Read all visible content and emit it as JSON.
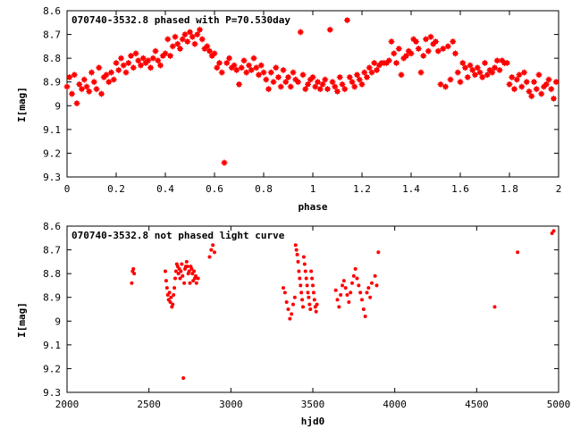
{
  "chart_data": [
    {
      "type": "scatter",
      "title": "070740-3532.8 phased with P=70.530day",
      "xlabel": "phase",
      "ylabel": "I[mag]",
      "xlim": [
        0,
        2
      ],
      "ylim": [
        9.3,
        8.6
      ],
      "y_inverted": true,
      "xticks": [
        "0",
        "0.2",
        "0.4",
        "0.6",
        "0.8",
        "1",
        "1.2",
        "1.4",
        "1.6",
        "1.8",
        "2"
      ],
      "yticks": [
        "8.6",
        "8.7",
        "8.8",
        "8.9",
        "9",
        "9.1",
        "9.2",
        "9.3"
      ],
      "marker": "star",
      "color": "#ff0000",
      "series": [
        {
          "x": [
            0.0,
            0.01,
            0.02,
            0.03,
            0.04,
            0.05,
            0.06,
            0.07,
            0.08,
            0.09,
            0.1,
            0.11,
            0.12,
            0.13,
            0.14,
            0.15,
            0.16,
            0.17,
            0.18,
            0.19,
            0.2,
            0.21,
            0.22,
            0.23,
            0.24,
            0.25,
            0.26,
            0.27,
            0.28,
            0.29,
            0.3,
            0.31,
            0.32,
            0.33,
            0.34,
            0.35,
            0.36,
            0.37,
            0.38,
            0.39,
            0.4,
            0.41,
            0.42,
            0.43,
            0.44,
            0.45,
            0.46,
            0.47,
            0.48,
            0.49,
            0.5,
            0.51,
            0.52,
            0.53,
            0.54,
            0.55,
            0.56,
            0.57,
            0.58,
            0.59,
            0.6,
            0.61,
            0.62,
            0.63,
            0.64,
            0.65,
            0.66,
            0.67,
            0.68,
            0.69,
            0.7,
            0.71,
            0.72,
            0.73,
            0.74,
            0.75,
            0.76,
            0.77,
            0.78,
            0.79,
            0.8,
            0.81,
            0.82,
            0.83,
            0.84,
            0.85,
            0.86,
            0.87,
            0.88,
            0.89,
            0.9,
            0.91,
            0.92,
            0.93,
            0.94,
            0.95,
            0.96,
            0.97,
            0.98,
            0.99,
            1.0,
            1.01,
            1.02,
            1.03,
            1.04,
            1.05,
            1.06,
            1.07,
            1.08,
            1.09,
            1.1,
            1.11,
            1.12,
            1.13,
            1.14,
            1.15,
            1.16,
            1.17,
            1.18,
            1.19,
            1.2,
            1.21,
            1.22,
            1.23,
            1.24,
            1.25,
            1.26,
            1.27,
            1.28,
            1.29,
            1.3,
            1.31,
            1.32,
            1.33,
            1.34,
            1.35,
            1.36,
            1.37,
            1.38,
            1.39,
            1.4,
            1.41,
            1.42,
            1.43,
            1.44,
            1.45,
            1.46,
            1.47,
            1.48,
            1.49,
            1.5,
            1.51,
            1.52,
            1.53,
            1.54,
            1.55,
            1.56,
            1.57,
            1.58,
            1.59,
            1.6,
            1.61,
            1.62,
            1.63,
            1.64,
            1.65,
            1.66,
            1.67,
            1.68,
            1.69,
            1.7,
            1.71,
            1.72,
            1.73,
            1.74,
            1.75,
            1.76,
            1.77,
            1.78,
            1.79,
            1.8,
            1.81,
            1.82,
            1.83,
            1.84,
            1.85,
            1.86,
            1.87,
            1.88,
            1.89,
            1.9,
            1.91,
            1.92,
            1.93,
            1.94,
            1.95,
            1.96,
            1.97,
            1.98,
            1.99
          ],
          "y": [
            8.92,
            8.88,
            8.95,
            8.87,
            8.99,
            8.91,
            8.93,
            8.89,
            8.92,
            8.94,
            8.86,
            8.9,
            8.93,
            8.84,
            8.95,
            8.88,
            8.87,
            8.9,
            8.86,
            8.89,
            8.82,
            8.85,
            8.8,
            8.83,
            8.86,
            8.82,
            8.79,
            8.84,
            8.78,
            8.81,
            8.83,
            8.8,
            8.82,
            8.81,
            8.84,
            8.8,
            8.77,
            8.81,
            8.83,
            8.79,
            8.78,
            8.72,
            8.79,
            8.75,
            8.71,
            8.74,
            8.76,
            8.72,
            8.7,
            8.73,
            8.69,
            8.71,
            8.74,
            8.7,
            8.68,
            8.72,
            8.76,
            8.75,
            8.77,
            8.79,
            8.78,
            8.84,
            8.82,
            8.86,
            9.24,
            8.82,
            8.8,
            8.84,
            8.83,
            8.85,
            8.91,
            8.84,
            8.81,
            8.86,
            8.83,
            8.85,
            8.8,
            8.84,
            8.87,
            8.83,
            8.86,
            8.89,
            8.93,
            8.86,
            8.9,
            8.84,
            8.88,
            8.92,
            8.85,
            8.9,
            8.88,
            8.92,
            8.86,
            8.89,
            8.9,
            8.69,
            8.87,
            8.93,
            8.91,
            8.89,
            8.88,
            8.92,
            8.9,
            8.93,
            8.91,
            8.89,
            8.93,
            8.68,
            8.9,
            8.92,
            8.94,
            8.88,
            8.91,
            8.93,
            8.64,
            8.88,
            8.9,
            8.92,
            8.87,
            8.89,
            8.91,
            8.86,
            8.88,
            8.84,
            8.86,
            8.82,
            8.85,
            8.83,
            8.82,
            8.82,
            8.82,
            8.81,
            8.73,
            8.78,
            8.82,
            8.76,
            8.87,
            8.8,
            8.79,
            8.77,
            8.78,
            8.72,
            8.73,
            8.76,
            8.86,
            8.79,
            8.72,
            8.77,
            8.71,
            8.74,
            8.73,
            8.77,
            8.91,
            8.76,
            8.92,
            8.75,
            8.89,
            8.73,
            8.78,
            8.86,
            8.9,
            8.82,
            8.84,
            8.88,
            8.83,
            8.85,
            8.87,
            8.84,
            8.86,
            8.88,
            8.82,
            8.87,
            8.85,
            8.86,
            8.84,
            8.81,
            8.85,
            8.81,
            8.82,
            8.82,
            8.91,
            8.88,
            8.93,
            8.89,
            8.87,
            8.92,
            8.86,
            8.9,
            8.94,
            8.96,
            8.9,
            8.93,
            8.87,
            8.95,
            8.92,
            8.91,
            8.89,
            8.93,
            8.97,
            8.9
          ]
        }
      ]
    },
    {
      "type": "scatter",
      "title": "070740-3532.8 not phased light curve",
      "xlabel": "hjd0",
      "ylabel": "I[mag]",
      "xlim": [
        2000,
        5000
      ],
      "ylim": [
        9.3,
        8.6
      ],
      "y_inverted": true,
      "xticks": [
        "2000",
        "2500",
        "3000",
        "3500",
        "4000",
        "4500",
        "5000"
      ],
      "yticks": [
        "8.6",
        "8.7",
        "8.8",
        "8.9",
        "9",
        "9.1",
        "9.2",
        "9.3"
      ],
      "marker": "dot",
      "color": "#ff0000",
      "series": [
        {
          "x": [
            2395,
            2400,
            2405,
            2410,
            2600,
            2605,
            2610,
            2615,
            2620,
            2625,
            2630,
            2635,
            2640,
            2645,
            2650,
            2655,
            2660,
            2665,
            2670,
            2675,
            2680,
            2685,
            2690,
            2695,
            2700,
            2705,
            2710,
            2715,
            2720,
            2725,
            2730,
            2735,
            2740,
            2745,
            2750,
            2755,
            2760,
            2765,
            2770,
            2775,
            2780,
            2785,
            2790,
            2800,
            2870,
            2880,
            2890,
            2900,
            3320,
            3330,
            3340,
            3350,
            3360,
            3370,
            3380,
            3390,
            3395,
            3400,
            3405,
            3410,
            3415,
            3420,
            3425,
            3430,
            3435,
            3440,
            3445,
            3450,
            3455,
            3460,
            3465,
            3470,
            3475,
            3480,
            3485,
            3490,
            3495,
            3500,
            3505,
            3510,
            3515,
            3520,
            3525,
            3640,
            3650,
            3660,
            3670,
            3680,
            3690,
            3700,
            3710,
            3720,
            3730,
            3740,
            3750,
            3760,
            3770,
            3780,
            3790,
            3800,
            3810,
            3820,
            3830,
            3840,
            3850,
            3860,
            3880,
            3890,
            3900,
            4610,
            4750,
            4960,
            4970
          ],
          "y": [
            8.84,
            8.79,
            8.78,
            8.8,
            8.79,
            8.83,
            8.86,
            8.89,
            8.91,
            8.88,
            8.92,
            8.9,
            8.94,
            8.93,
            8.89,
            8.86,
            8.82,
            8.79,
            8.76,
            8.77,
            8.8,
            8.78,
            8.82,
            8.79,
            8.76,
            8.81,
            9.24,
            8.84,
            8.78,
            8.77,
            8.75,
            8.77,
            8.8,
            8.79,
            8.84,
            8.77,
            8.78,
            8.8,
            8.83,
            8.79,
            8.82,
            8.81,
            8.84,
            8.82,
            8.73,
            8.7,
            8.68,
            8.71,
            8.86,
            8.88,
            8.92,
            8.95,
            8.99,
            8.97,
            8.93,
            8.9,
            8.68,
            8.7,
            8.72,
            8.75,
            8.79,
            8.82,
            8.85,
            8.88,
            8.91,
            8.94,
            8.73,
            8.76,
            8.79,
            8.82,
            8.85,
            8.88,
            8.9,
            8.93,
            8.95,
            8.79,
            8.82,
            8.85,
            8.88,
            8.91,
            8.94,
            8.96,
            8.93,
            8.87,
            8.91,
            8.94,
            8.89,
            8.85,
            8.83,
            8.86,
            8.89,
            8.92,
            8.88,
            8.84,
            8.81,
            8.78,
            8.82,
            8.85,
            8.88,
            8.91,
            8.95,
            8.98,
            8.88,
            8.86,
            8.9,
            8.84,
            8.81,
            8.85,
            8.71,
            8.94,
            8.71,
            8.63,
            8.62
          ]
        }
      ]
    }
  ]
}
